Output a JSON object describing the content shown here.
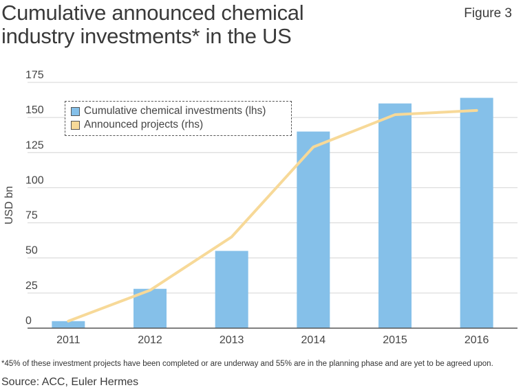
{
  "title_lines": [
    "Cumulative announced chemical",
    "industry investments* in the US"
  ],
  "figure_label": "Figure 3",
  "footnote": "*45% of these investment projects have been completed or are underway and 55% are in the planning phase and are yet to be agreed upon.",
  "source": "Source: ACC, Euler Hermes",
  "colors": {
    "bar": "#85c0e9",
    "line": "#f7d998",
    "grid": "#d4d4d4"
  },
  "chart_data": {
    "type": "bar",
    "title": "Cumulative announced chemical industry investments* in the US",
    "ylabel": "USD bn",
    "xlabel": "",
    "categories": [
      "2011",
      "2012",
      "2013",
      "2014",
      "2015",
      "2016"
    ],
    "ylim": [
      0,
      175
    ],
    "yticks": [
      0,
      25,
      50,
      75,
      100,
      125,
      150,
      175
    ],
    "ytick_labels": [
      "0",
      "25",
      "50",
      "75",
      "100",
      "125",
      "150",
      "175"
    ],
    "grid": true,
    "legend_position": "top-left",
    "series": [
      {
        "name": "Cumulative chemical investments (lhs)",
        "type": "bar",
        "values": [
          5,
          28,
          55,
          140,
          160,
          164
        ]
      },
      {
        "name": "Announced projects (rhs)",
        "type": "line",
        "values": [
          5,
          27,
          65,
          129,
          152,
          155
        ]
      }
    ]
  }
}
